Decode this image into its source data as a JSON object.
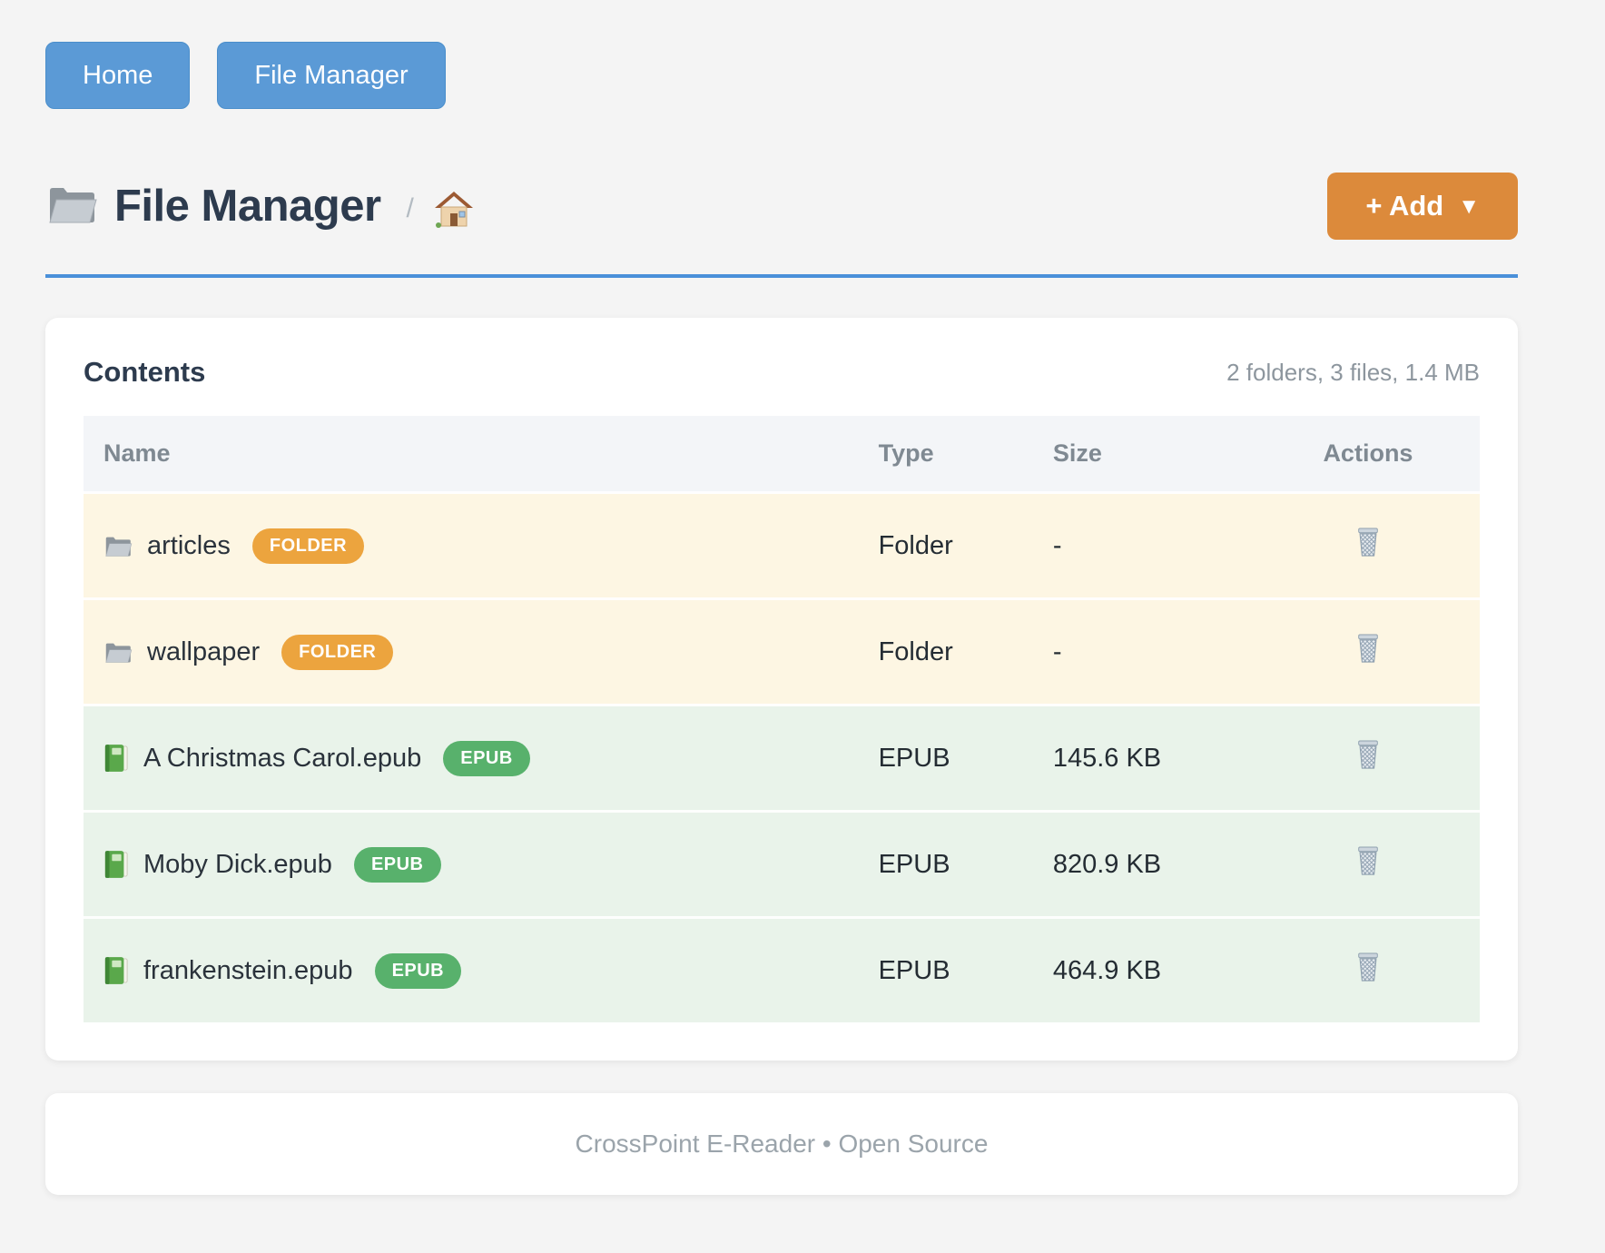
{
  "nav": {
    "buttons": [
      {
        "label": "Home"
      },
      {
        "label": "File Manager"
      }
    ]
  },
  "header": {
    "title": "File Manager",
    "title_icon": "folder-icon",
    "breadcrumb_separator": "/",
    "breadcrumb_home_icon": "home-icon",
    "add_button": {
      "label": "+ Add",
      "caret": "▼"
    }
  },
  "contents": {
    "heading": "Contents",
    "summary": "2 folders, 3 files, 1.4 MB",
    "columns": [
      "Name",
      "Type",
      "Size",
      "Actions"
    ],
    "rows": [
      {
        "name": "articles",
        "kind": "folder",
        "badge": "FOLDER",
        "type": "Folder",
        "size": "-",
        "action_icon": "trash-icon"
      },
      {
        "name": "wallpaper",
        "kind": "folder",
        "badge": "FOLDER",
        "type": "Folder",
        "size": "-",
        "action_icon": "trash-icon"
      },
      {
        "name": "A Christmas Carol.epub",
        "kind": "epub",
        "badge": "EPUB",
        "type": "EPUB",
        "size": "145.6 KB",
        "action_icon": "trash-icon"
      },
      {
        "name": "Moby Dick.epub",
        "kind": "epub",
        "badge": "EPUB",
        "type": "EPUB",
        "size": "820.9 KB",
        "action_icon": "trash-icon"
      },
      {
        "name": "frankenstein.epub",
        "kind": "epub",
        "badge": "EPUB",
        "type": "EPUB",
        "size": "464.9 KB",
        "action_icon": "trash-icon"
      }
    ]
  },
  "footer": {
    "text": "CrossPoint E-Reader • Open Source"
  },
  "colors": {
    "page_bg": "#f4f4f4",
    "nav_button": "#5b9ad6",
    "add_button": "#dc8a3b",
    "accent_rule": "#4a90d9",
    "folder_badge": "#eca43e",
    "epub_badge": "#58b16c",
    "folder_row_bg": "#fdf6e3",
    "epub_row_bg": "#e9f3ea",
    "header_row_bg": "#f3f5f8",
    "heading_text": "#2d3b4e",
    "muted_text": "#8d969e"
  }
}
